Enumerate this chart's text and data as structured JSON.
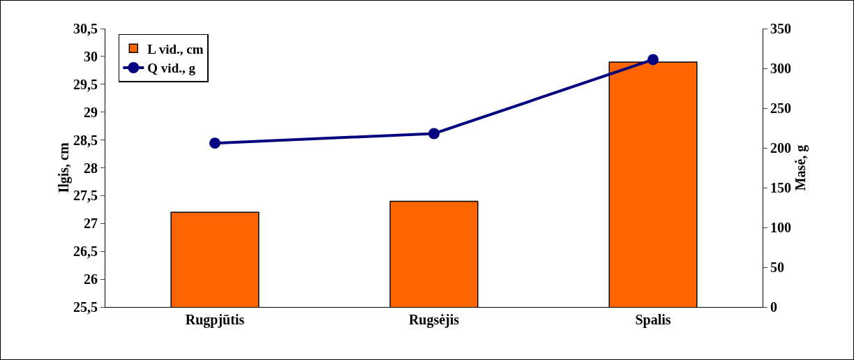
{
  "chart_data": {
    "type": "bar",
    "ylabel": "Ilgis, cm",
    "y2label": "Masė, g",
    "categories": [
      "Rugpjūtis",
      "Rugsėjis",
      "Spalis"
    ],
    "series": [
      {
        "name": "L vid., cm",
        "color": "#ff6600",
        "values": [
          27.2,
          27.4,
          29.9
        ]
      },
      {
        "name": "Q vid., g",
        "type": "line",
        "axis": "y2",
        "color": "#000080",
        "marker": "circle",
        "values": [
          206,
          218,
          311
        ]
      }
    ],
    "ylim": [
      25.5,
      30.5
    ],
    "yticks": [
      {
        "value": 25.5,
        "label": "25,5"
      },
      26,
      {
        "value": 26.5,
        "label": "26,5"
      },
      27,
      {
        "value": 27.5,
        "label": "27,5"
      },
      28,
      {
        "value": 28.5,
        "label": "28,5"
      },
      29,
      {
        "value": 29.5,
        "label": "29,5"
      },
      30,
      {
        "value": 30.5,
        "label": "30,5"
      }
    ],
    "y2lim": [
      0,
      350
    ],
    "y2ticks": [
      0,
      50,
      100,
      150,
      200,
      250,
      300,
      350
    ],
    "grid": false,
    "legend": "top left"
  }
}
